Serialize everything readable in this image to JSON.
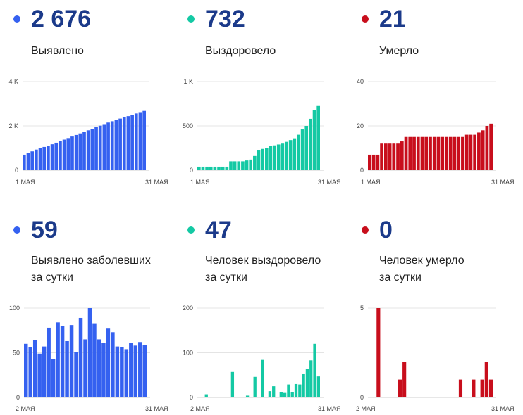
{
  "colors": {
    "blue": "#3561f0",
    "teal": "#14c9a4",
    "red": "#c80e1c",
    "grid": "#e4e4e4",
    "title": "#1b3a8a"
  },
  "panels": [
    {
      "value": "2 676",
      "label1": "Выявлено",
      "label2": "",
      "color": "blue"
    },
    {
      "value": "732",
      "label1": "Выздоровело",
      "label2": "",
      "color": "teal"
    },
    {
      "value": "21",
      "label1": "Умерло",
      "label2": "",
      "color": "red"
    },
    {
      "value": "59",
      "label1": "Выявлено заболевших",
      "label2": "за сутки",
      "color": "blue"
    },
    {
      "value": "47",
      "label1": "Человек выздоровело",
      "label2": "за сутки",
      "color": "teal"
    },
    {
      "value": "0",
      "label1": "Человек умерло",
      "label2": "за сутки",
      "color": "red"
    }
  ],
  "chart_data": [
    {
      "type": "bar",
      "series_color": "blue",
      "ylim": [
        0,
        4000
      ],
      "yticks": [
        0,
        2000,
        4000
      ],
      "yticklabels": [
        "0",
        "2 K",
        "4 K"
      ],
      "xticklabels": [
        "1 МАЯ",
        "31 МАЯ"
      ],
      "values": [
        700,
        790,
        850,
        930,
        990,
        1050,
        1110,
        1170,
        1240,
        1310,
        1380,
        1450,
        1520,
        1590,
        1660,
        1730,
        1800,
        1870,
        1940,
        2010,
        2080,
        2150,
        2210,
        2270,
        2330,
        2390,
        2440,
        2500,
        2560,
        2620,
        2676
      ]
    },
    {
      "type": "bar",
      "series_color": "teal",
      "ylim": [
        0,
        1000
      ],
      "yticks": [
        0,
        500,
        1000
      ],
      "yticklabels": [
        "0",
        "500",
        "1 K"
      ],
      "xticklabels": [
        "1 МАЯ",
        "31 МАЯ"
      ],
      "values": [
        40,
        40,
        40,
        40,
        40,
        40,
        40,
        40,
        100,
        100,
        100,
        100,
        110,
        120,
        160,
        230,
        240,
        250,
        270,
        280,
        290,
        300,
        320,
        340,
        360,
        400,
        460,
        500,
        580,
        680,
        732
      ]
    },
    {
      "type": "bar",
      "series_color": "red",
      "ylim": [
        0,
        40
      ],
      "yticks": [
        0,
        20,
        40
      ],
      "yticklabels": [
        "0",
        "20",
        "40"
      ],
      "xticklabels": [
        "1 МАЯ",
        "31 МАЯ"
      ],
      "values": [
        7,
        7,
        7,
        12,
        12,
        12,
        12,
        12,
        13,
        15,
        15,
        15,
        15,
        15,
        15,
        15,
        15,
        15,
        15,
        15,
        15,
        15,
        15,
        15,
        16,
        16,
        16,
        17,
        18,
        20,
        21
      ]
    },
    {
      "type": "bar",
      "series_color": "blue",
      "ylim": [
        0,
        100
      ],
      "yticks": [
        0,
        50,
        100
      ],
      "yticklabels": [
        "0",
        "50",
        "100"
      ],
      "xticklabels": [
        "2 МАЯ",
        "31 МАЯ"
      ],
      "values": [
        60,
        56,
        64,
        49,
        57,
        78,
        43,
        84,
        80,
        63,
        81,
        51,
        89,
        65,
        100,
        83,
        65,
        61,
        77,
        73,
        57,
        56,
        54,
        61,
        58,
        62,
        59
      ]
    },
    {
      "type": "bar",
      "series_color": "teal",
      "ylim": [
        0,
        200
      ],
      "yticks": [
        0,
        100,
        200
      ],
      "yticklabels": [
        "0",
        "100",
        "200"
      ],
      "xticklabels": [
        "2 МАЯ",
        "31 МАЯ"
      ],
      "values": [
        0,
        0,
        7,
        0,
        0,
        0,
        0,
        0,
        0,
        57,
        0,
        0,
        0,
        4,
        0,
        46,
        0,
        84,
        0,
        14,
        25,
        0,
        12,
        10,
        29,
        12,
        30,
        29,
        52,
        63,
        83,
        120,
        47
      ]
    },
    {
      "type": "bar",
      "series_color": "red",
      "ylim": [
        0,
        5
      ],
      "yticks": [
        0,
        5
      ],
      "yticklabels": [
        "0",
        "5"
      ],
      "xticklabels": [
        "2 МАЯ",
        "31 МАЯ"
      ],
      "values": [
        0,
        0,
        5,
        0,
        0,
        0,
        0,
        1,
        2,
        0,
        0,
        0,
        0,
        0,
        0,
        0,
        0,
        0,
        0,
        0,
        0,
        1,
        0,
        0,
        1,
        0,
        1,
        2,
        1
      ]
    }
  ]
}
